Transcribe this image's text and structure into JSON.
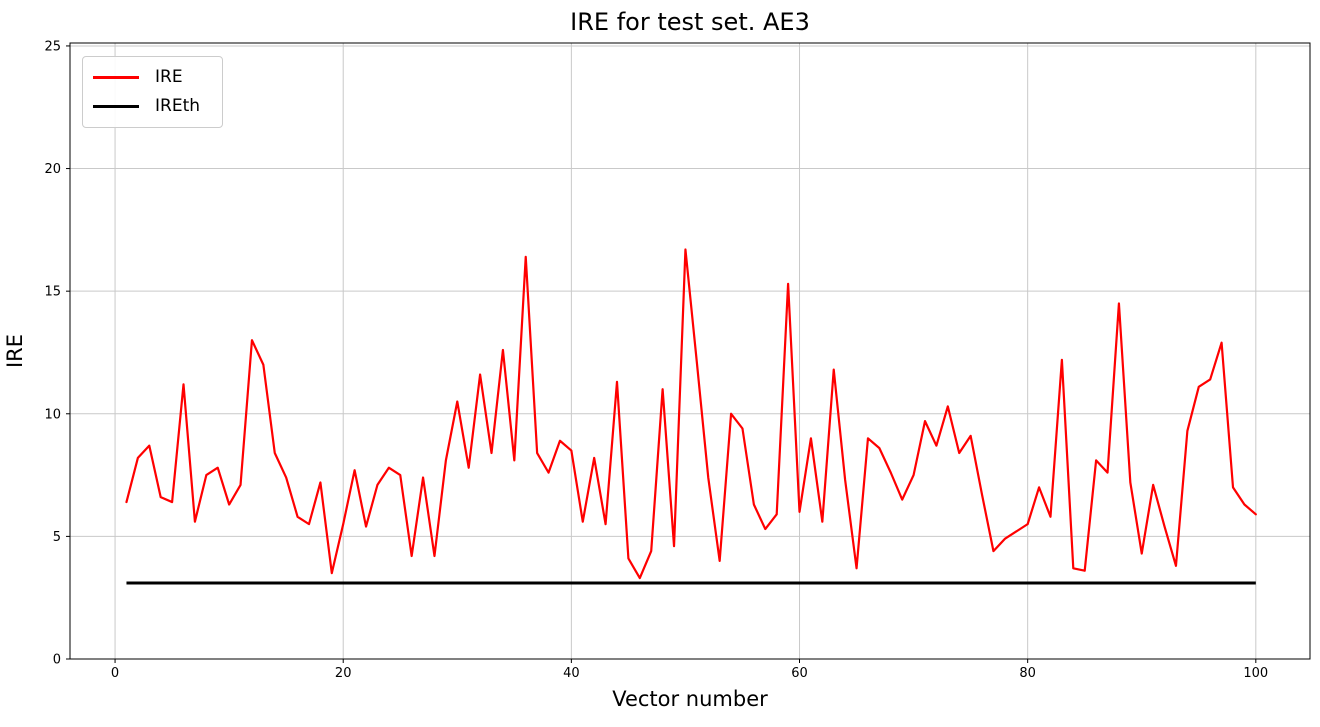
{
  "figure": {
    "title": "IRE for test set. AE3",
    "xlabel": "Vector number",
    "ylabel": "IRE"
  },
  "legend": {
    "items": [
      {
        "label": "IRE",
        "color": "#ff0000"
      },
      {
        "label": "IREth",
        "color": "#000000"
      }
    ]
  },
  "chart_data": {
    "type": "line",
    "title": "IRE for test set. AE3",
    "xlabel": "Vector number",
    "ylabel": "IRE",
    "xlim": [
      -3.95,
      104.75
    ],
    "ylim": [
      0,
      25.12
    ],
    "xticks": [
      0,
      20,
      40,
      60,
      80,
      100
    ],
    "yticks": [
      0,
      5,
      10,
      15,
      20,
      25
    ],
    "grid": true,
    "grid_color": "#c9c9c9",
    "legend_position": "upper left",
    "x_start": 1,
    "series": [
      {
        "name": "IRE",
        "color": "#ff0000",
        "line_width": 2.2,
        "values": [
          6.4,
          8.2,
          8.7,
          6.6,
          6.4,
          11.2,
          5.6,
          7.5,
          7.8,
          6.3,
          7.1,
          13.0,
          12.0,
          8.4,
          7.4,
          5.8,
          5.5,
          7.2,
          3.5,
          5.5,
          7.7,
          5.4,
          7.1,
          7.8,
          7.5,
          4.2,
          7.4,
          4.2,
          8.1,
          10.5,
          7.8,
          11.6,
          8.4,
          12.6,
          8.1,
          16.4,
          8.4,
          7.6,
          8.9,
          8.5,
          5.6,
          8.2,
          5.5,
          11.3,
          4.1,
          3.3,
          4.4,
          11.0,
          4.6,
          16.7,
          12.1,
          7.4,
          4.0,
          10.0,
          9.4,
          6.3,
          5.3,
          5.9,
          15.3,
          6.0,
          9.0,
          5.6,
          11.8,
          7.3,
          3.7,
          9.0,
          8.6,
          7.6,
          6.5,
          7.5,
          9.7,
          8.7,
          10.3,
          8.4,
          9.1,
          6.7,
          4.4,
          4.9,
          5.2,
          5.5,
          7.0,
          5.8,
          12.2,
          3.7,
          3.6,
          8.1,
          7.6,
          14.5,
          7.2,
          4.3,
          7.1,
          5.4,
          3.8,
          9.3,
          11.1,
          11.4,
          12.9,
          7.0,
          6.3,
          5.9
        ]
      },
      {
        "name": "IREth",
        "color": "#000000",
        "line_width": 3,
        "constant": 3.1,
        "x_range": [
          1,
          100
        ]
      }
    ]
  }
}
